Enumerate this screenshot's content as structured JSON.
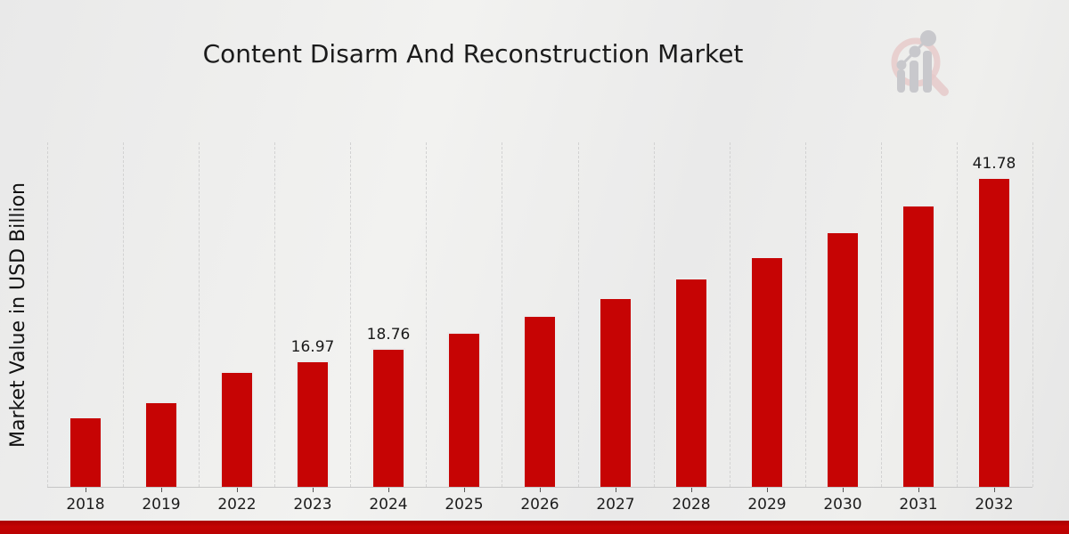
{
  "page": {
    "title": "Content Disarm And Reconstruction Market"
  },
  "branding": {
    "logo_name": "market-research-future-logo",
    "logo_ring_color": "#e6caca",
    "logo_bars_color": "#c8c8cc"
  },
  "colors": {
    "background": "#ececec",
    "bar": "#c60404",
    "banner": "#bb0202",
    "gridline": "#d2d2d2",
    "axis_line": "#c6c6c6",
    "text": "#1b1b1b"
  },
  "chart_data": {
    "type": "bar",
    "title": "Content Disarm And Reconstruction Market",
    "xlabel": "",
    "ylabel": "Market Value in USD Billion",
    "categories": [
      "2018",
      "2019",
      "2022",
      "2023",
      "2024",
      "2025",
      "2026",
      "2027",
      "2028",
      "2029",
      "2030",
      "2031",
      "2032"
    ],
    "values": [
      9.5,
      11.5,
      15.6,
      16.97,
      18.76,
      20.9,
      23.1,
      25.5,
      28.2,
      31.1,
      34.4,
      38.0,
      41.78
    ],
    "bar_labels": [
      "",
      "",
      "",
      "16.97",
      "18.76",
      "",
      "",
      "",
      "",
      "",
      "",
      "",
      "41.78"
    ],
    "ylim": [
      0,
      46.4
    ],
    "grid": "vertical-dashed",
    "legend": "none",
    "bar_color": "#c60404"
  }
}
